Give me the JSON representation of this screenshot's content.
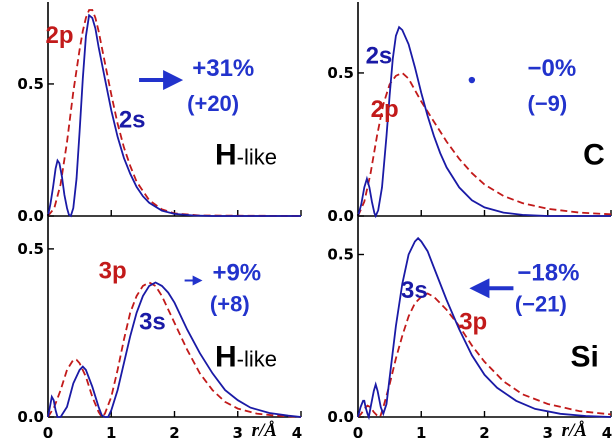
{
  "colors": {
    "solid": "#1a1aa6",
    "dashed": "#c21a1a",
    "pct": "#2233cc",
    "axis": "#000000"
  },
  "chart_data": [
    {
      "type": "line",
      "panel": "top-left",
      "element_main": "H",
      "element_suffix": "-like",
      "percent_text": "+31%",
      "paren_text": "(+20)",
      "arrow": "right",
      "labels": {
        "solid": "2s",
        "dashed": "2p"
      },
      "xlim": [
        0,
        4
      ],
      "ylim": [
        0,
        0.78
      ],
      "ytick_values": [
        0.0,
        0.5
      ],
      "ytick_labels": [
        "0.0",
        "0.5"
      ],
      "series": [
        {
          "values": [
            [
              0,
              0
            ],
            [
              0.04,
              0.047
            ],
            [
              0.08,
              0.11
            ],
            [
              0.12,
              0.18
            ],
            [
              0.15,
              0.21
            ],
            [
              0.18,
              0.2
            ],
            [
              0.22,
              0.15
            ],
            [
              0.26,
              0.08
            ],
            [
              0.3,
              0.03
            ],
            [
              0.33,
              0.005
            ],
            [
              0.36,
              0.0
            ],
            [
              0.4,
              0.03
            ],
            [
              0.45,
              0.14
            ],
            [
              0.5,
              0.32
            ],
            [
              0.55,
              0.52
            ],
            [
              0.6,
              0.68
            ],
            [
              0.65,
              0.76
            ],
            [
              0.7,
              0.75
            ],
            [
              0.75,
              0.71
            ],
            [
              0.8,
              0.64
            ],
            [
              0.9,
              0.52
            ],
            [
              1.0,
              0.4
            ],
            [
              1.1,
              0.3
            ],
            [
              1.2,
              0.22
            ],
            [
              1.3,
              0.16
            ],
            [
              1.4,
              0.11
            ],
            [
              1.5,
              0.075
            ],
            [
              1.6,
              0.05
            ],
            [
              1.8,
              0.02
            ],
            [
              2.0,
              0.008
            ],
            [
              2.3,
              0.002
            ],
            [
              2.6,
              0.0
            ],
            [
              4.0,
              0.0
            ]
          ]
        },
        {
          "values": [
            [
              0,
              0
            ],
            [
              0.1,
              0.03
            ],
            [
              0.2,
              0.12
            ],
            [
              0.3,
              0.28
            ],
            [
              0.4,
              0.47
            ],
            [
              0.5,
              0.63
            ],
            [
              0.55,
              0.7
            ],
            [
              0.6,
              0.75
            ],
            [
              0.65,
              0.78
            ],
            [
              0.7,
              0.78
            ],
            [
              0.75,
              0.75
            ],
            [
              0.8,
              0.7
            ],
            [
              0.9,
              0.58
            ],
            [
              1.0,
              0.46
            ],
            [
              1.1,
              0.35
            ],
            [
              1.2,
              0.26
            ],
            [
              1.3,
              0.19
            ],
            [
              1.4,
              0.13
            ],
            [
              1.6,
              0.06
            ],
            [
              1.8,
              0.025
            ],
            [
              2.0,
              0.01
            ],
            [
              2.4,
              0.002
            ],
            [
              4.0,
              0.0
            ]
          ]
        }
      ]
    },
    {
      "type": "line",
      "panel": "top-right",
      "element_main": "C",
      "element_suffix": "",
      "percent_text": "−0%",
      "paren_text": "(−9)",
      "arrow": "dot",
      "labels": {
        "solid": "2s",
        "dashed": "2p"
      },
      "xlim": [
        0,
        4
      ],
      "ylim": [
        0,
        0.72
      ],
      "ytick_values": [
        0.0,
        0.5
      ],
      "ytick_labels": [
        "0.0",
        "0.5"
      ],
      "series": [
        {
          "values": [
            [
              0,
              0
            ],
            [
              0.05,
              0.04
            ],
            [
              0.1,
              0.1
            ],
            [
              0.14,
              0.13
            ],
            [
              0.18,
              0.1
            ],
            [
              0.22,
              0.05
            ],
            [
              0.26,
              0.01
            ],
            [
              0.28,
              0.0
            ],
            [
              0.32,
              0.02
            ],
            [
              0.38,
              0.1
            ],
            [
              0.45,
              0.28
            ],
            [
              0.5,
              0.42
            ],
            [
              0.55,
              0.55
            ],
            [
              0.6,
              0.63
            ],
            [
              0.65,
              0.66
            ],
            [
              0.7,
              0.65
            ],
            [
              0.8,
              0.6
            ],
            [
              0.9,
              0.52
            ],
            [
              1.0,
              0.43
            ],
            [
              1.1,
              0.35
            ],
            [
              1.2,
              0.28
            ],
            [
              1.3,
              0.22
            ],
            [
              1.4,
              0.17
            ],
            [
              1.6,
              0.1
            ],
            [
              1.8,
              0.055
            ],
            [
              2.0,
              0.03
            ],
            [
              2.3,
              0.012
            ],
            [
              2.6,
              0.004
            ],
            [
              3.0,
              0.0
            ],
            [
              4.0,
              0.0
            ]
          ]
        },
        {
          "values": [
            [
              0,
              0
            ],
            [
              0.1,
              0.05
            ],
            [
              0.2,
              0.15
            ],
            [
              0.3,
              0.28
            ],
            [
              0.4,
              0.39
            ],
            [
              0.5,
              0.46
            ],
            [
              0.6,
              0.49
            ],
            [
              0.7,
              0.5
            ],
            [
              0.8,
              0.48
            ],
            [
              0.9,
              0.44
            ],
            [
              1.0,
              0.4
            ],
            [
              1.2,
              0.33
            ],
            [
              1.4,
              0.26
            ],
            [
              1.6,
              0.2
            ],
            [
              1.8,
              0.15
            ],
            [
              2.0,
              0.11
            ],
            [
              2.3,
              0.07
            ],
            [
              2.6,
              0.045
            ],
            [
              3.0,
              0.025
            ],
            [
              3.5,
              0.012
            ],
            [
              4.0,
              0.006
            ]
          ]
        }
      ]
    },
    {
      "type": "line",
      "panel": "bottom-left",
      "element_main": "H",
      "element_suffix": "-like",
      "percent_text": "+9%",
      "paren_text": "(+8)",
      "arrow": "right-small",
      "labels": {
        "solid": "3s",
        "dashed": "3p"
      },
      "xlim": [
        0,
        4
      ],
      "ylim": [
        0,
        0.58
      ],
      "ytick_values": [
        0.0,
        0.5
      ],
      "ytick_labels": [
        "0.0",
        "0.5"
      ],
      "xtick_values": [
        0,
        1,
        2,
        3,
        4
      ],
      "xtick_labels": [
        "0",
        "1",
        "2",
        "3",
        "4"
      ],
      "xlabel": "r/Å",
      "series": [
        {
          "values": [
            [
              0,
              0
            ],
            [
              0.03,
              0.03
            ],
            [
              0.06,
              0.06
            ],
            [
              0.09,
              0.05
            ],
            [
              0.12,
              0.02
            ],
            [
              0.15,
              0.0
            ],
            [
              0.2,
              0.0
            ],
            [
              0.3,
              0.03
            ],
            [
              0.4,
              0.1
            ],
            [
              0.5,
              0.14
            ],
            [
              0.55,
              0.15
            ],
            [
              0.6,
              0.14
            ],
            [
              0.7,
              0.09
            ],
            [
              0.8,
              0.03
            ],
            [
              0.85,
              0.005
            ],
            [
              0.9,
              0.0
            ],
            [
              0.95,
              0.0
            ],
            [
              1.0,
              0.02
            ],
            [
              1.1,
              0.08
            ],
            [
              1.2,
              0.16
            ],
            [
              1.3,
              0.24
            ],
            [
              1.4,
              0.31
            ],
            [
              1.5,
              0.36
            ],
            [
              1.6,
              0.39
            ],
            [
              1.7,
              0.4
            ],
            [
              1.8,
              0.39
            ],
            [
              1.9,
              0.37
            ],
            [
              2.0,
              0.34
            ],
            [
              2.2,
              0.26
            ],
            [
              2.4,
              0.19
            ],
            [
              2.6,
              0.13
            ],
            [
              2.8,
              0.08
            ],
            [
              3.0,
              0.05
            ],
            [
              3.2,
              0.028
            ],
            [
              3.5,
              0.012
            ],
            [
              3.8,
              0.004
            ],
            [
              4.0,
              0.0
            ]
          ]
        },
        {
          "values": [
            [
              0,
              0
            ],
            [
              0.1,
              0.03
            ],
            [
              0.2,
              0.08
            ],
            [
              0.3,
              0.14
            ],
            [
              0.4,
              0.17
            ],
            [
              0.45,
              0.17
            ],
            [
              0.5,
              0.16
            ],
            [
              0.6,
              0.12
            ],
            [
              0.7,
              0.06
            ],
            [
              0.8,
              0.015
            ],
            [
              0.85,
              0.0
            ],
            [
              0.9,
              0.01
            ],
            [
              1.0,
              0.06
            ],
            [
              1.1,
              0.14
            ],
            [
              1.2,
              0.23
            ],
            [
              1.3,
              0.31
            ],
            [
              1.4,
              0.36
            ],
            [
              1.5,
              0.39
            ],
            [
              1.6,
              0.4
            ],
            [
              1.7,
              0.39
            ],
            [
              1.8,
              0.36
            ],
            [
              2.0,
              0.28
            ],
            [
              2.2,
              0.2
            ],
            [
              2.4,
              0.13
            ],
            [
              2.6,
              0.08
            ],
            [
              2.8,
              0.045
            ],
            [
              3.0,
              0.025
            ],
            [
              3.3,
              0.01
            ],
            [
              3.6,
              0.004
            ],
            [
              4.0,
              0.0
            ]
          ]
        }
      ]
    },
    {
      "type": "line",
      "panel": "bottom-right",
      "element_main": "Si",
      "element_suffix": "",
      "percent_text": "−18%",
      "paren_text": "(−21)",
      "arrow": "left",
      "labels": {
        "solid": "3s",
        "dashed": "3p"
      },
      "xlim": [
        0,
        4
      ],
      "ylim": [
        0,
        0.6
      ],
      "ytick_values": [
        0.0,
        0.5
      ],
      "ytick_labels": [
        "0.0",
        "0.5"
      ],
      "xtick_values": [
        0,
        1,
        2,
        3,
        4
      ],
      "xtick_labels": [
        "0",
        "1",
        "2",
        "3",
        "4"
      ],
      "xlabel": "r/Å",
      "series": [
        {
          "values": [
            [
              0,
              0
            ],
            [
              0.04,
              0.03
            ],
            [
              0.08,
              0.05
            ],
            [
              0.1,
              0.05
            ],
            [
              0.12,
              0.03
            ],
            [
              0.15,
              0.01
            ],
            [
              0.17,
              0.0
            ],
            [
              0.2,
              0.03
            ],
            [
              0.25,
              0.08
            ],
            [
              0.28,
              0.1
            ],
            [
              0.31,
              0.08
            ],
            [
              0.36,
              0.03
            ],
            [
              0.4,
              0.01
            ],
            [
              0.45,
              0.04
            ],
            [
              0.5,
              0.12
            ],
            [
              0.6,
              0.28
            ],
            [
              0.7,
              0.41
            ],
            [
              0.8,
              0.5
            ],
            [
              0.9,
              0.54
            ],
            [
              0.95,
              0.55
            ],
            [
              1.0,
              0.54
            ],
            [
              1.1,
              0.51
            ],
            [
              1.2,
              0.46
            ],
            [
              1.4,
              0.36
            ],
            [
              1.6,
              0.27
            ],
            [
              1.8,
              0.19
            ],
            [
              2.0,
              0.13
            ],
            [
              2.2,
              0.09
            ],
            [
              2.5,
              0.05
            ],
            [
              2.8,
              0.025
            ],
            [
              3.2,
              0.01
            ],
            [
              3.6,
              0.003
            ],
            [
              4.0,
              0.0
            ]
          ]
        },
        {
          "values": [
            [
              0,
              0
            ],
            [
              0.05,
              0.01
            ],
            [
              0.1,
              0.025
            ],
            [
              0.15,
              0.035
            ],
            [
              0.2,
              0.03
            ],
            [
              0.25,
              0.015
            ],
            [
              0.3,
              0.005
            ],
            [
              0.35,
              0.0
            ],
            [
              0.4,
              0.03
            ],
            [
              0.5,
              0.1
            ],
            [
              0.6,
              0.18
            ],
            [
              0.7,
              0.25
            ],
            [
              0.8,
              0.31
            ],
            [
              0.9,
              0.35
            ],
            [
              1.0,
              0.37
            ],
            [
              1.1,
              0.38
            ],
            [
              1.2,
              0.37
            ],
            [
              1.4,
              0.33
            ],
            [
              1.6,
              0.28
            ],
            [
              1.8,
              0.22
            ],
            [
              2.0,
              0.17
            ],
            [
              2.3,
              0.11
            ],
            [
              2.6,
              0.07
            ],
            [
              3.0,
              0.04
            ],
            [
              3.5,
              0.018
            ],
            [
              4.0,
              0.008
            ]
          ]
        }
      ]
    }
  ]
}
